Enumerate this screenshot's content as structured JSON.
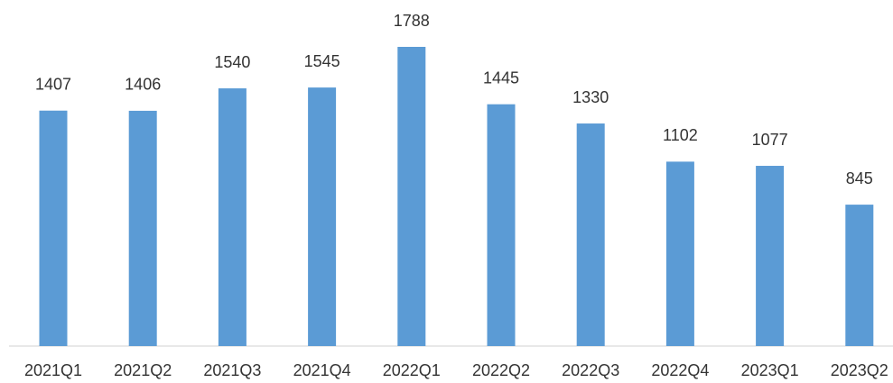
{
  "chart_data": {
    "type": "bar",
    "categories": [
      "2021Q1",
      "2021Q2",
      "2021Q3",
      "2021Q4",
      "2022Q1",
      "2022Q2",
      "2022Q3",
      "2022Q4",
      "2023Q1",
      "2023Q2"
    ],
    "values": [
      1407,
      1406,
      1540,
      1545,
      1788,
      1445,
      1330,
      1102,
      1077,
      845
    ],
    "color": "#5b9bd5"
  }
}
